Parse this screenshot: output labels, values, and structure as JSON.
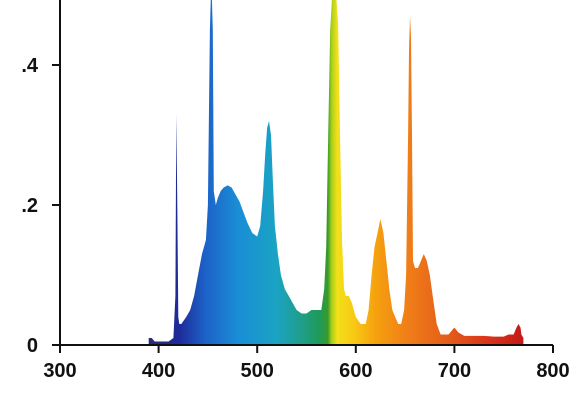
{
  "chart_data": {
    "type": "area",
    "title": "",
    "xlabel": "",
    "ylabel": "",
    "xlim": [
      300,
      800
    ],
    "ylim": [
      0,
      0.5
    ],
    "grid": false,
    "x_ticks": [
      {
        "value": 300,
        "label": "300"
      },
      {
        "value": 400,
        "label": "400"
      },
      {
        "value": 500,
        "label": "500"
      },
      {
        "value": 600,
        "label": "600"
      },
      {
        "value": 700,
        "label": "700"
      },
      {
        "value": 800,
        "label": "800"
      }
    ],
    "y_ticks": [
      {
        "value": 0,
        "label": "0"
      },
      {
        "value": 0.2,
        "label": ".2"
      },
      {
        "value": 0.4,
        "label": ".4"
      }
    ],
    "fill": "visible-spectrum gradient (violet to red)",
    "series": [
      {
        "x": [
          390,
          393,
          396,
          400,
          405,
          410,
          415,
          417,
          418,
          419,
          420,
          421,
          423,
          428,
          432,
          436,
          440,
          444,
          448,
          450,
          452,
          453,
          454,
          455,
          456,
          458,
          460,
          463,
          466,
          470,
          474,
          478,
          482,
          486,
          490,
          495,
          500,
          503,
          506,
          508,
          510,
          512,
          514,
          516,
          518,
          521,
          524,
          528,
          532,
          536,
          540,
          545,
          550,
          555,
          560,
          565,
          568,
          570,
          572,
          574,
          576,
          578,
          580,
          582,
          584,
          586,
          588,
          590,
          593,
          596,
          600,
          605,
          610,
          613,
          616,
          619,
          622,
          625,
          628,
          631,
          634,
          637,
          640,
          643,
          646,
          649,
          651,
          653,
          654,
          655,
          656,
          657,
          658,
          660,
          663,
          666,
          669,
          672,
          675,
          678,
          682,
          686,
          690,
          694,
          697,
          700,
          704,
          710,
          720,
          730,
          740,
          750,
          755,
          760,
          763,
          765,
          767,
          768,
          770
        ],
        "y": [
          0.01,
          0.01,
          0.005,
          0.005,
          0.005,
          0.005,
          0.01,
          0.07,
          0.33,
          0.2,
          0.04,
          0.03,
          0.03,
          0.04,
          0.05,
          0.07,
          0.1,
          0.13,
          0.15,
          0.2,
          0.45,
          0.5,
          0.5,
          0.45,
          0.22,
          0.2,
          0.21,
          0.22,
          0.225,
          0.228,
          0.225,
          0.215,
          0.205,
          0.19,
          0.175,
          0.16,
          0.155,
          0.17,
          0.22,
          0.27,
          0.31,
          0.32,
          0.3,
          0.23,
          0.17,
          0.13,
          0.1,
          0.08,
          0.07,
          0.06,
          0.05,
          0.045,
          0.045,
          0.05,
          0.05,
          0.05,
          0.08,
          0.14,
          0.3,
          0.45,
          0.5,
          0.5,
          0.5,
          0.46,
          0.3,
          0.15,
          0.08,
          0.07,
          0.07,
          0.06,
          0.04,
          0.03,
          0.03,
          0.05,
          0.1,
          0.14,
          0.16,
          0.18,
          0.16,
          0.12,
          0.08,
          0.05,
          0.04,
          0.03,
          0.03,
          0.05,
          0.1,
          0.3,
          0.42,
          0.47,
          0.44,
          0.3,
          0.12,
          0.11,
          0.11,
          0.12,
          0.13,
          0.12,
          0.1,
          0.07,
          0.03,
          0.015,
          0.015,
          0.015,
          0.02,
          0.025,
          0.018,
          0.013,
          0.013,
          0.013,
          0.012,
          0.012,
          0.015,
          0.015,
          0.025,
          0.03,
          0.025,
          0.015,
          0.01
        ]
      }
    ]
  }
}
